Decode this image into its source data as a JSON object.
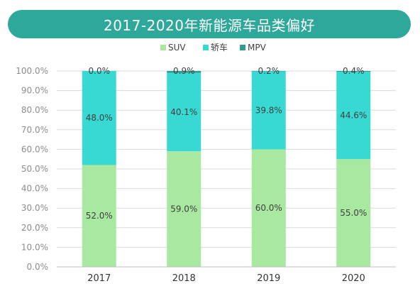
{
  "colors": {
    "title_bg": "#2ea89a",
    "suv": "#a8e8a0",
    "sedan": "#38d9d3",
    "mpv": "#2f9c90",
    "grid": "#d9d9d9",
    "tick_text": "#8c8c8c",
    "label_text": "#404040"
  },
  "chart_data": {
    "type": "bar",
    "stacked": true,
    "title": "2017-2020年新能源车品类偏好",
    "categories": [
      "2017",
      "2018",
      "2019",
      "2020"
    ],
    "series": [
      {
        "name": "SUV",
        "color": "#a8e8a0",
        "values": [
          52.0,
          59.0,
          60.0,
          55.0
        ]
      },
      {
        "name": "轿车",
        "color": "#38d9d3",
        "values": [
          48.0,
          40.1,
          39.8,
          44.6
        ]
      },
      {
        "name": "MPV",
        "color": "#2f9c90",
        "values": [
          0.0,
          0.9,
          0.2,
          0.4
        ]
      }
    ],
    "data_labels": [
      [
        "52.0%",
        "59.0%",
        "60.0%",
        "55.0%"
      ],
      [
        "48.0%",
        "40.1%",
        "39.8%",
        "44.6%"
      ],
      [
        "0.0%",
        "0.9%",
        "0.2%",
        "0.4%"
      ]
    ],
    "ylim": [
      0,
      100
    ],
    "y_ticks": [
      "0.0%",
      "10.0%",
      "20.0%",
      "30.0%",
      "40.0%",
      "50.0%",
      "60.0%",
      "70.0%",
      "80.0%",
      "90.0%",
      "100.0%"
    ],
    "legend_position": "top-center",
    "grid": true
  }
}
